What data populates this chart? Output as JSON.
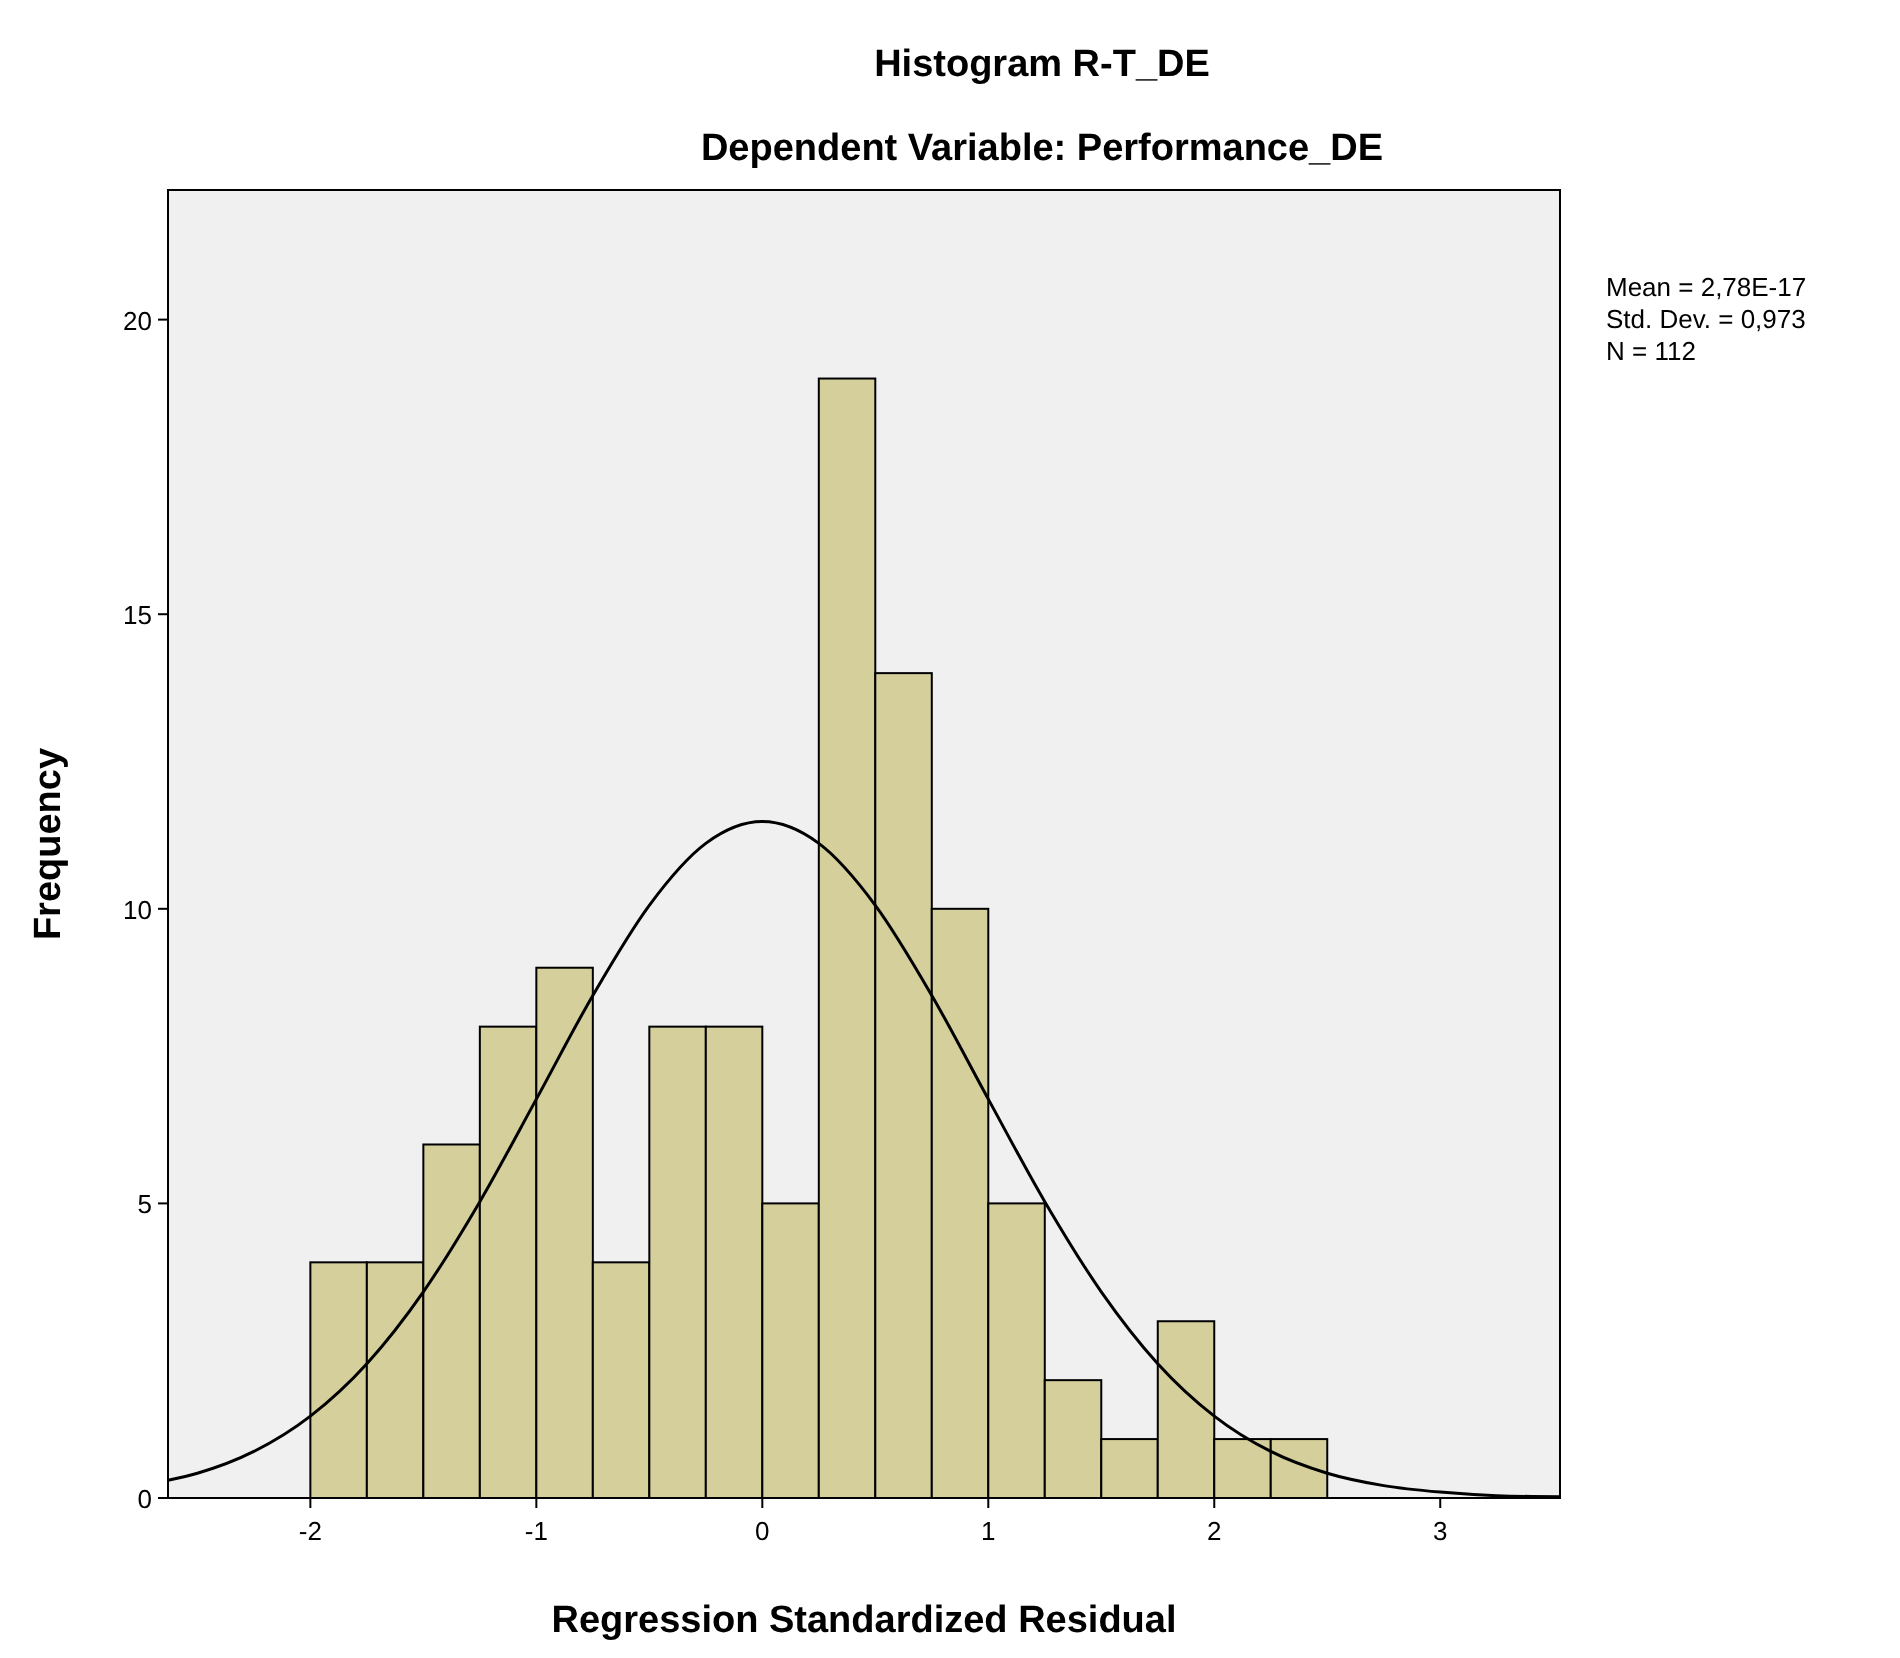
{
  "chart_data": {
    "type": "histogram",
    "title": "Histogram R-T_DE",
    "subtitle": "Dependent Variable: Performance_DE",
    "xlabel": "Regression Standardized Residual",
    "ylabel": "Frequency",
    "bins": [
      -2,
      -1.75,
      -1.5,
      -1.25,
      -1,
      -0.75,
      -0.5,
      -0.25,
      0,
      0.25,
      0.5,
      0.75,
      1,
      1.25,
      1.5,
      1.75,
      2,
      2.25,
      2.5
    ],
    "series": [
      {
        "color": "#d5cf9c",
        "values": [
          4,
          4,
          6,
          8,
          9,
          4,
          8,
          8,
          5,
          19,
          14,
          10,
          5,
          2,
          1,
          3,
          1,
          1
        ]
      },
      {
        "type": "line",
        "color": "#000000",
        "x": [
          -2.63,
          -2.5,
          -2.25,
          -2,
          -1.75,
          -1.5,
          -1.25,
          -1,
          -0.75,
          -0.5,
          -0.25,
          0,
          0.25,
          0.5,
          0.75,
          1,
          1.25,
          1.5,
          1.75,
          2,
          2.25,
          2.5,
          2.75,
          3,
          3.25,
          3.53
        ],
        "values": [
          0.3,
          0.42,
          0.79,
          1.39,
          2.28,
          3.5,
          5.03,
          6.77,
          8.53,
          10.06,
          11.11,
          11.48,
          11.11,
          10.06,
          8.53,
          6.77,
          5.03,
          3.5,
          2.28,
          1.39,
          0.79,
          0.42,
          0.21,
          0.1,
          0.04,
          0.02
        ]
      }
    ],
    "xlim": [
      -2.63,
      3.53
    ],
    "ylim": [
      0,
      22.2
    ],
    "xticks": [
      -2,
      -1,
      0,
      1,
      2,
      3
    ],
    "yticks": [
      0,
      5,
      10,
      15,
      20
    ],
    "grid": false,
    "annotations": [
      "Mean = 2,78E-17",
      "Std. Dev. = 0,973",
      "N = 112"
    ]
  }
}
